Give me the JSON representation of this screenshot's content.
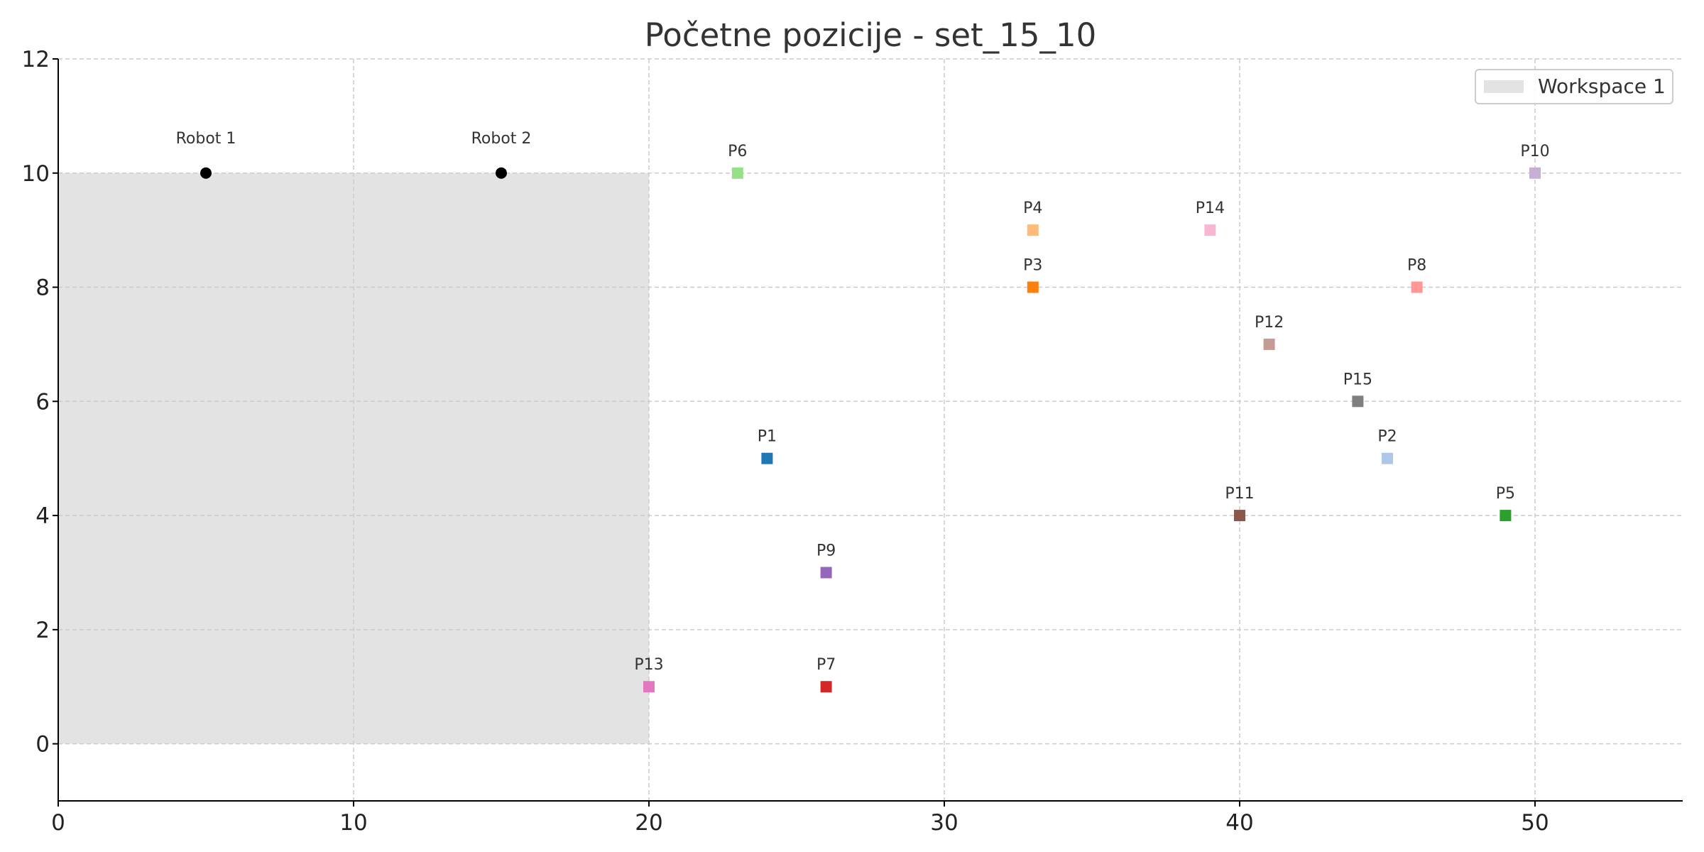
{
  "chart_data": {
    "type": "scatter",
    "title": "Početne pozicije - set_15_10",
    "xlabel": "",
    "ylabel": "",
    "xlim": [
      0,
      55
    ],
    "ylim": [
      -1,
      12
    ],
    "x_ticks": [
      0,
      10,
      20,
      30,
      40,
      50
    ],
    "y_ticks": [
      0,
      2,
      4,
      6,
      8,
      10,
      12
    ],
    "grid": true,
    "legend_position": "top-right",
    "workspaces": [
      {
        "label": "Workspace 1",
        "x_range": [
          0,
          20
        ],
        "y_range": [
          0,
          10
        ],
        "color": "#e3e3e3"
      }
    ],
    "robots": [
      {
        "label": "Robot 1",
        "x": 5,
        "y": 10,
        "color": "#000000"
      },
      {
        "label": "Robot 2",
        "x": 15,
        "y": 10,
        "color": "#000000"
      }
    ],
    "points": [
      {
        "label": "P1",
        "x": 24,
        "y": 5,
        "color": "#1f77b4"
      },
      {
        "label": "P2",
        "x": 45,
        "y": 5,
        "color": "#aec7e8"
      },
      {
        "label": "P3",
        "x": 33,
        "y": 8,
        "color": "#ff7f0e"
      },
      {
        "label": "P4",
        "x": 33,
        "y": 9,
        "color": "#ffbb78"
      },
      {
        "label": "P5",
        "x": 49,
        "y": 4,
        "color": "#2ca02c"
      },
      {
        "label": "P6",
        "x": 23,
        "y": 10,
        "color": "#98df8a"
      },
      {
        "label": "P7",
        "x": 26,
        "y": 1,
        "color": "#d62728"
      },
      {
        "label": "P8",
        "x": 46,
        "y": 8,
        "color": "#ff9896"
      },
      {
        "label": "P9",
        "x": 26,
        "y": 3,
        "color": "#9467bd"
      },
      {
        "label": "P10",
        "x": 50,
        "y": 10,
        "color": "#c5b0d5"
      },
      {
        "label": "P11",
        "x": 40,
        "y": 4,
        "color": "#8c564b"
      },
      {
        "label": "P12",
        "x": 41,
        "y": 7,
        "color": "#c49c94"
      },
      {
        "label": "P13",
        "x": 20,
        "y": 1,
        "color": "#e377c2"
      },
      {
        "label": "P14",
        "x": 39,
        "y": 9,
        "color": "#f7b6d2"
      },
      {
        "label": "P15",
        "x": 44,
        "y": 6,
        "color": "#7f7f7f"
      }
    ]
  }
}
